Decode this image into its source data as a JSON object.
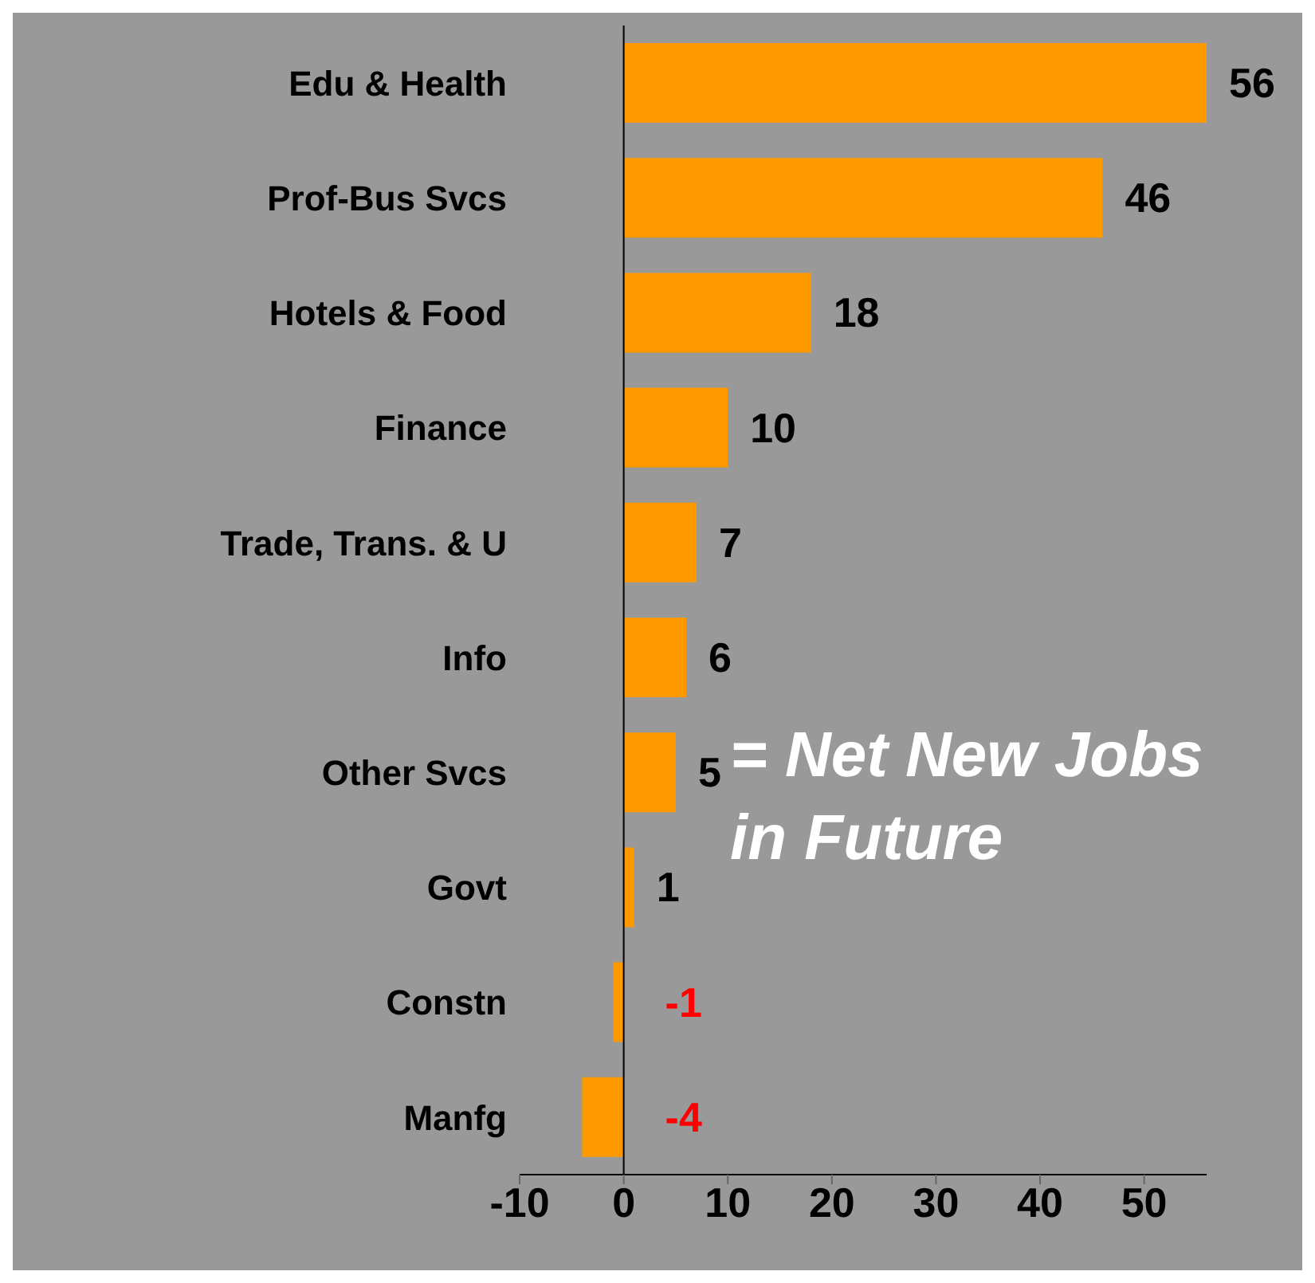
{
  "chart_data": {
    "type": "bar",
    "orientation": "horizontal",
    "categories": [
      "Edu & Health",
      "Prof-Bus Svcs",
      "Hotels & Food",
      "Finance",
      "Trade, Trans. & U",
      "Info",
      "Other Svcs",
      "Govt",
      "Constn",
      "Manfg"
    ],
    "values": [
      56,
      46,
      18,
      10,
      7,
      6,
      5,
      1,
      -1,
      -4
    ],
    "color": "#ff9900",
    "data_labels": true,
    "xlim": [
      -10,
      56
    ],
    "xticks": [
      -10,
      0,
      10,
      20,
      30,
      40,
      50
    ],
    "grid": false,
    "ref_lines": [
      {
        "axis": "x",
        "value": 0,
        "color": "#000000"
      }
    ],
    "legend": false,
    "annotations": [
      "= Net New Jobs in Future"
    ]
  }
}
